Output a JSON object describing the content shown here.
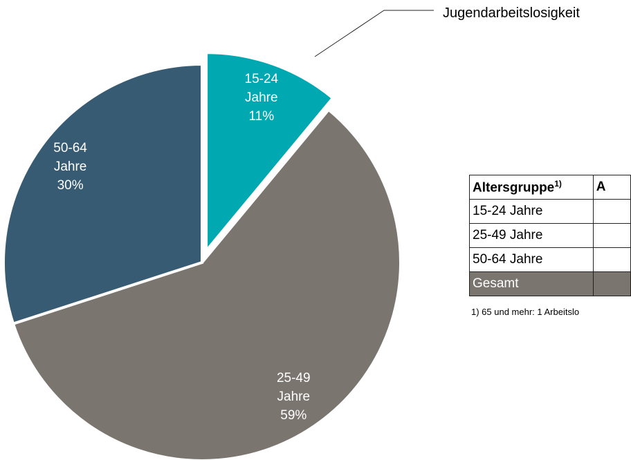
{
  "chart_data": {
    "type": "pie",
    "categories": [
      "15-24 Jahre",
      "25-49 Jahre",
      "50-64 Jahre"
    ],
    "values": [
      11,
      59,
      30
    ],
    "value_labels": [
      "11%",
      "59%",
      "30%"
    ],
    "colors": [
      "#00a9b1",
      "#7b7570",
      "#375b72"
    ],
    "explode": [
      true,
      false,
      false
    ],
    "annotation": "Jugendarbeitslosigkeit"
  },
  "table": {
    "header": [
      "Altersgruppe",
      "A"
    ],
    "header_note": "1)",
    "rows": [
      [
        "15-24 Jahre"
      ],
      [
        "25-49 Jahre"
      ],
      [
        "50-64 Jahre"
      ]
    ],
    "total": [
      "Gesamt"
    ],
    "footnote": "1) 65 und mehr: 1 Arbeitslo"
  }
}
